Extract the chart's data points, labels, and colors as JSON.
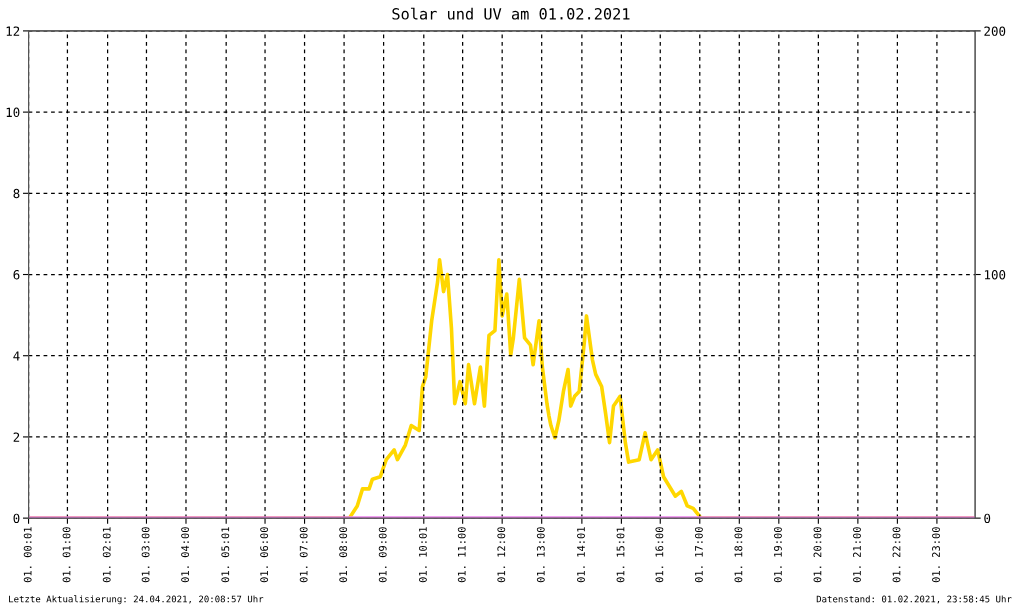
{
  "chart_data": {
    "type": "line",
    "title": "Solar und UV am 01.02.2021",
    "xlim": [
      "2021-02-01T00:01",
      "2021-02-01T23:58"
    ],
    "xticks": [
      {
        "value": "2021-02-01T00:01",
        "label": "01. 00:01"
      },
      {
        "value": "2021-02-01T01:00",
        "label": "01. 01:00"
      },
      {
        "value": "2021-02-01T02:01",
        "label": "01. 02:01"
      },
      {
        "value": "2021-02-01T03:00",
        "label": "01. 03:00"
      },
      {
        "value": "2021-02-01T04:00",
        "label": "01. 04:00"
      },
      {
        "value": "2021-02-01T05:01",
        "label": "01. 05:01"
      },
      {
        "value": "2021-02-01T06:00",
        "label": "01. 06:00"
      },
      {
        "value": "2021-02-01T07:00",
        "label": "01. 07:00"
      },
      {
        "value": "2021-02-01T08:00",
        "label": "01. 08:00"
      },
      {
        "value": "2021-02-01T09:00",
        "label": "01. 09:00"
      },
      {
        "value": "2021-02-01T10:01",
        "label": "01. 10:01"
      },
      {
        "value": "2021-02-01T11:00",
        "label": "01. 11:00"
      },
      {
        "value": "2021-02-01T12:00",
        "label": "01. 12:00"
      },
      {
        "value": "2021-02-01T13:00",
        "label": "01. 13:00"
      },
      {
        "value": "2021-02-01T14:01",
        "label": "01. 14:01"
      },
      {
        "value": "2021-02-01T15:01",
        "label": "01. 15:01"
      },
      {
        "value": "2021-02-01T16:00",
        "label": "01. 16:00"
      },
      {
        "value": "2021-02-01T17:00",
        "label": "01. 17:00"
      },
      {
        "value": "2021-02-01T18:00",
        "label": "01. 18:00"
      },
      {
        "value": "2021-02-01T19:00",
        "label": "01. 19:00"
      },
      {
        "value": "2021-02-01T20:00",
        "label": "01. 20:00"
      },
      {
        "value": "2021-02-01T21:00",
        "label": "01. 21:00"
      },
      {
        "value": "2021-02-01T22:00",
        "label": "01. 22:00"
      },
      {
        "value": "2021-02-01T23:00",
        "label": "01. 23:00"
      }
    ],
    "ylim": [
      0,
      12
    ],
    "yticks": [
      0,
      2,
      4,
      6,
      8,
      10,
      12
    ],
    "y2lim": [
      0,
      200
    ],
    "y2ticks": [
      0,
      100,
      200
    ],
    "grid": true,
    "line_style": "solid",
    "marker": "none",
    "series": [
      {
        "color": "#ffd700",
        "axis": "y2",
        "x": [
          "2021-02-01T00:01",
          "2021-02-01T08:08",
          "2021-02-01T08:20",
          "2021-02-01T08:28",
          "2021-02-01T08:38",
          "2021-02-01T08:43",
          "2021-02-01T08:55",
          "2021-02-01T09:04",
          "2021-02-01T09:16",
          "2021-02-01T09:21",
          "2021-02-01T09:33",
          "2021-02-01T09:42",
          "2021-02-01T09:54",
          "2021-02-01T09:59",
          "2021-02-01T10:04",
          "2021-02-01T10:13",
          "2021-02-01T10:22",
          "2021-02-01T10:25",
          "2021-02-01T10:31",
          "2021-02-01T10:37",
          "2021-02-01T10:43",
          "2021-02-01T10:48",
          "2021-02-01T10:56",
          "2021-02-01T11:04",
          "2021-02-01T11:09",
          "2021-02-01T11:18",
          "2021-02-01T11:27",
          "2021-02-01T11:33",
          "2021-02-01T11:40",
          "2021-02-01T11:49",
          "2021-02-01T11:55",
          "2021-02-01T12:00",
          "2021-02-01T12:07",
          "2021-02-01T12:13",
          "2021-02-01T12:17",
          "2021-02-01T12:26",
          "2021-02-01T12:34",
          "2021-02-01T12:43",
          "2021-02-01T12:47",
          "2021-02-01T12:56",
          "2021-02-01T13:01",
          "2021-02-01T13:08",
          "2021-02-01T13:11",
          "2021-02-01T13:14",
          "2021-02-01T13:20",
          "2021-02-01T13:26",
          "2021-02-01T13:33",
          "2021-02-01T13:40",
          "2021-02-01T13:44",
          "2021-02-01T13:50",
          "2021-02-01T13:57",
          "2021-02-01T14:05",
          "2021-02-01T14:08",
          "2021-02-01T14:17",
          "2021-02-01T14:22",
          "2021-02-01T14:31",
          "2021-02-01T14:37",
          "2021-02-01T14:43",
          "2021-02-01T14:49",
          "2021-02-01T14:54",
          "2021-02-01T14:59",
          "2021-02-01T15:07",
          "2021-02-01T15:12",
          "2021-02-01T15:28",
          "2021-02-01T15:37",
          "2021-02-01T15:46",
          "2021-02-01T15:56",
          "2021-02-01T16:05",
          "2021-02-01T16:23",
          "2021-02-01T16:32",
          "2021-02-01T16:41",
          "2021-02-01T16:50",
          "2021-02-01T17:02",
          "2021-02-01T23:58"
        ],
        "values": [
          0,
          0,
          5,
          12,
          12,
          16,
          17,
          24,
          28,
          24,
          30,
          38,
          36,
          54,
          58,
          81,
          97,
          106,
          93,
          100,
          78,
          47,
          56,
          47,
          63,
          47,
          62,
          46,
          75,
          77,
          106,
          83,
          92,
          67,
          74,
          98,
          74,
          71,
          63,
          81,
          62,
          47,
          42,
          38,
          33,
          40,
          52,
          61,
          46,
          50,
          52,
          73,
          83,
          65,
          59,
          54,
          43,
          31,
          46,
          48,
          50,
          31,
          23,
          24,
          35,
          24,
          28,
          17,
          9,
          11,
          5,
          4,
          0,
          0
        ]
      },
      {
        "color": "#ee82ee",
        "x": [
          "2021-02-01T00:01",
          "2021-02-01T23:58"
        ],
        "values": [
          0,
          0
        ]
      }
    ],
    "annotations": [
      "Letzte Aktualisierung: 24.04.2021, 20:08:57 Uhr",
      "Datenstand: 01.02.2021, 23:58:45 Uhr"
    ]
  }
}
